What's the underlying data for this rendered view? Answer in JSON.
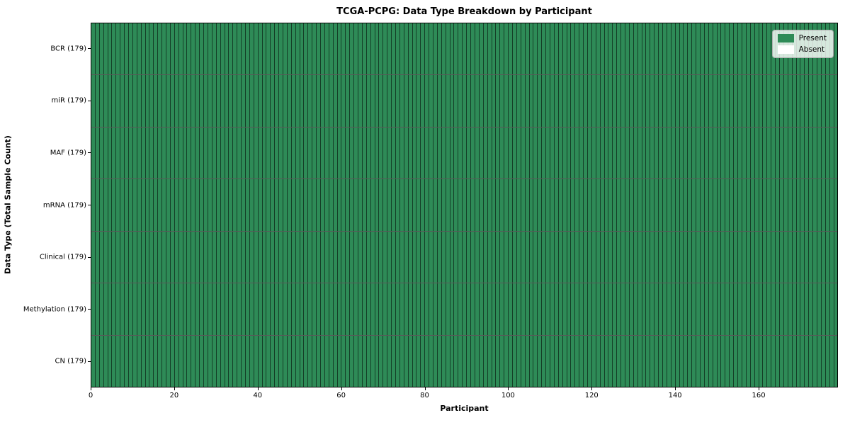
{
  "figure": {
    "background_color": "#ffffff"
  },
  "chart_data": {
    "type": "heatmap",
    "title": "TCGA-PCPG: Data Type Breakdown by Participant",
    "xlabel": "Participant",
    "ylabel": "Data Type (Total Sample Count)",
    "xlim": [
      0,
      179
    ],
    "n_participants": 179,
    "x_ticks": [
      0,
      20,
      40,
      60,
      80,
      100,
      120,
      140,
      160
    ],
    "rows": [
      {
        "name": "BCR",
        "label": "BCR (179)",
        "total_samples": 179,
        "present_count": 179,
        "absent_count": 0
      },
      {
        "name": "miR",
        "label": "miR (179)",
        "total_samples": 179,
        "present_count": 179,
        "absent_count": 0
      },
      {
        "name": "MAF",
        "label": "MAF (179)",
        "total_samples": 179,
        "present_count": 179,
        "absent_count": 0
      },
      {
        "name": "mRNA",
        "label": "mRNA (179)",
        "total_samples": 179,
        "present_count": 179,
        "absent_count": 0
      },
      {
        "name": "Clinical",
        "label": "Clinical (179)",
        "total_samples": 179,
        "present_count": 179,
        "absent_count": 0
      },
      {
        "name": "Methylation",
        "label": "Methylation (179)",
        "total_samples": 179,
        "present_count": 179,
        "absent_count": 0
      },
      {
        "name": "CN",
        "label": "CN (179)",
        "total_samples": 179,
        "present_count": 179,
        "absent_count": 0
      }
    ],
    "legend": {
      "position": "upper right",
      "entries": [
        {
          "label": "Present",
          "color": "#2e8b57"
        },
        {
          "label": "Absent",
          "color": "#ffffff"
        }
      ]
    },
    "colors": {
      "present": "#2e8b57",
      "absent": "#ffffff",
      "cell_edge": "rgba(0,0,0,0.55)",
      "axis": "#000000"
    },
    "grid": false
  }
}
